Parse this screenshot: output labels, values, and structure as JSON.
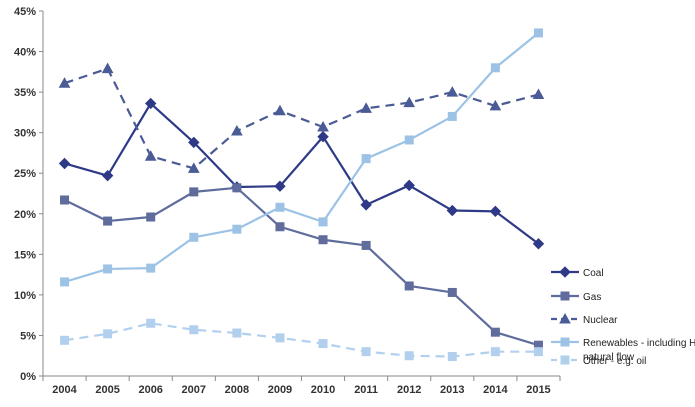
{
  "chart_data": {
    "type": "line",
    "title": "",
    "xlabel": "",
    "ylabel": "",
    "x": [
      "2004",
      "2005",
      "2006",
      "2007",
      "2008",
      "2009",
      "2010",
      "2011",
      "2012",
      "2013",
      "2014",
      "2015"
    ],
    "ylim": [
      0,
      45
    ],
    "y_ticks": [
      0,
      5,
      10,
      15,
      20,
      25,
      30,
      35,
      40,
      45
    ],
    "y_tick_labels": [
      "0%",
      "5%",
      "10%",
      "15%",
      "20%",
      "25%",
      "30%",
      "35%",
      "40%",
      "45%"
    ],
    "grid": false,
    "legend_position": "right",
    "series": [
      {
        "name": "Coal",
        "color": "#2e3a87",
        "marker": "diamond",
        "dash": "solid",
        "values": [
          26.2,
          24.7,
          33.6,
          28.8,
          23.3,
          23.4,
          29.5,
          21.1,
          23.5,
          20.4,
          20.3,
          16.3
        ]
      },
      {
        "name": "Gas",
        "color": "#5f6c9c",
        "marker": "square",
        "dash": "solid",
        "values": [
          21.7,
          19.1,
          19.6,
          22.7,
          23.2,
          18.4,
          16.8,
          16.1,
          11.1,
          10.3,
          5.4,
          3.8
        ]
      },
      {
        "name": "Nuclear",
        "color": "#4a5b95",
        "marker": "triangle",
        "dash": "dashed",
        "values": [
          36.1,
          37.9,
          27.1,
          25.6,
          30.2,
          32.7,
          30.7,
          33.0,
          33.7,
          35.0,
          33.3,
          34.7
        ]
      },
      {
        "name": "Renewables - including Hydro natural flow",
        "color": "#9cc3e6",
        "marker": "square",
        "dash": "solid",
        "values": [
          11.6,
          13.2,
          13.3,
          17.1,
          18.1,
          20.8,
          19.0,
          26.8,
          29.1,
          32.0,
          38.0,
          42.3
        ]
      },
      {
        "name": "Other - e.g. oil",
        "color": "#b2d0ee",
        "marker": "square",
        "dash": "dashed",
        "values": [
          4.4,
          5.2,
          6.5,
          5.7,
          5.3,
          4.7,
          4.0,
          3.0,
          2.5,
          2.4,
          3.0,
          3.0
        ]
      }
    ],
    "legend": [
      {
        "lines": [
          "Coal"
        ]
      },
      {
        "lines": [
          "Gas"
        ]
      },
      {
        "lines": [
          "Nuclear"
        ]
      },
      {
        "lines": [
          "Renewables - including Hydro",
          "natural flow"
        ]
      },
      {
        "lines": [
          "Other - e.g. oil"
        ]
      }
    ]
  }
}
